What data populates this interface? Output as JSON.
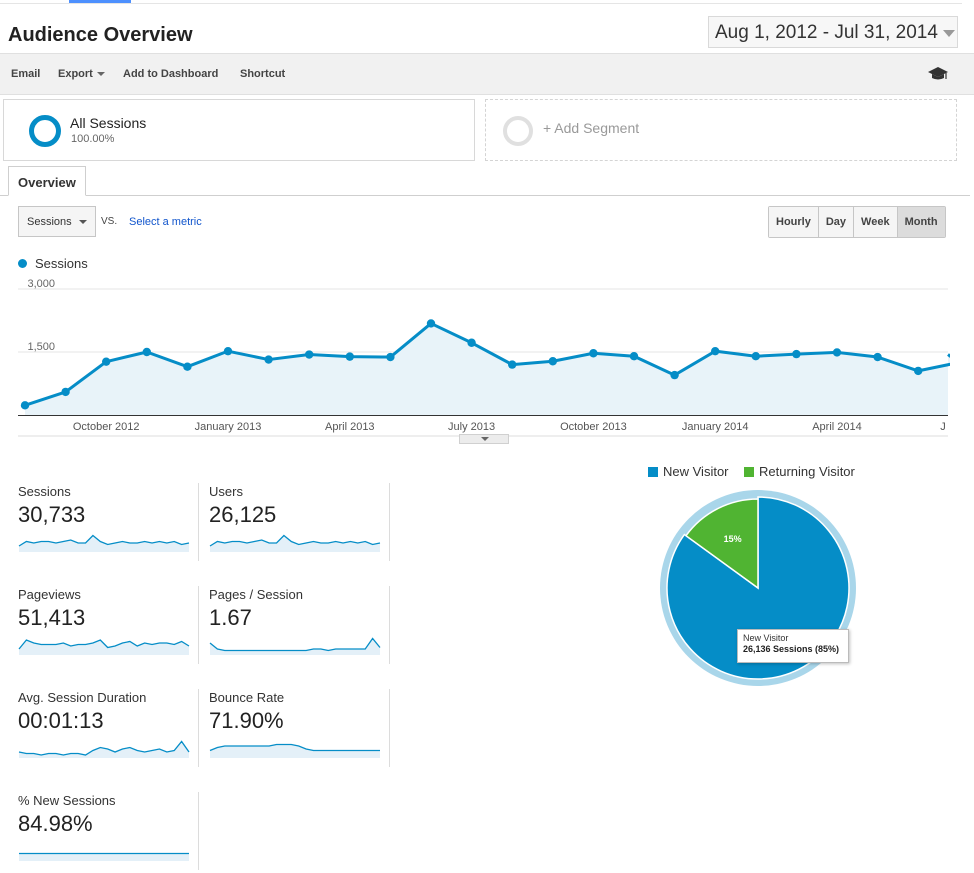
{
  "header": {
    "title": "Audience Overview",
    "date_range": "Aug 1, 2012 - Jul 31, 2014"
  },
  "toolbar": {
    "email": "Email",
    "export": "Export",
    "add_to_dashboard": "Add to Dashboard",
    "shortcut": "Shortcut",
    "help_icon": "graduation-cap-icon"
  },
  "segments": {
    "all": {
      "name": "All Sessions",
      "pct": "100.00%"
    },
    "add": {
      "label": "+ Add Segment"
    }
  },
  "tabs": [
    {
      "label": "Overview"
    }
  ],
  "controls": {
    "metric": "Sessions",
    "vs": "VS.",
    "select_metric": "Select a metric",
    "granularity": [
      "Hourly",
      "Day",
      "Week",
      "Month"
    ],
    "granularity_active": "Month"
  },
  "colors": {
    "accent": "#058dc7",
    "returning": "#50b432",
    "area": "#e8f3f9"
  },
  "chart_data": [
    {
      "type": "line",
      "series": [
        {
          "name": "Sessions",
          "values": [
            230,
            550,
            1270,
            1500,
            1150,
            1520,
            1320,
            1440,
            1390,
            1380,
            2180,
            1720,
            1200,
            1280,
            1470,
            1400,
            950,
            1520,
            1400,
            1450,
            1490,
            1380,
            1050,
            1250
          ]
        }
      ],
      "x": [
        "Aug 2012",
        "Sep 2012",
        "Oct 2012",
        "Nov 2012",
        "Dec 2012",
        "Jan 2013",
        "Feb 2013",
        "Mar 2013",
        "Apr 2013",
        "May 2013",
        "Jun 2013",
        "Jul 2013",
        "Aug 2013",
        "Sep 2013",
        "Oct 2013",
        "Nov 2013",
        "Dec 2013",
        "Jan 2014",
        "Feb 2014",
        "Mar 2014",
        "Apr 2014",
        "May 2014",
        "Jun 2014",
        "Jul 2014"
      ],
      "x_tick_labels": [
        "October 2012",
        "January 2013",
        "April 2013",
        "July 2013",
        "October 2013",
        "January 2014",
        "April 2014",
        "J"
      ],
      "x_tick_index": [
        2,
        5,
        8,
        11,
        14,
        17,
        20,
        23
      ],
      "y_ticks": [
        "3,000",
        "1,500"
      ],
      "ylim": [
        0,
        3000
      ],
      "grid": true
    },
    {
      "type": "pie",
      "categories": [
        "New Visitor",
        "Returning Visitor"
      ],
      "values": [
        85,
        15
      ],
      "slice_labels": [
        "",
        "15%"
      ]
    }
  ],
  "tooltip": {
    "title": "New Visitor",
    "value": "26,136 Sessions (85%)"
  },
  "metrics": [
    {
      "label": "Sessions",
      "value": "30,733",
      "spark": [
        4,
        7,
        6,
        7,
        7,
        6,
        7,
        8,
        6,
        6,
        11,
        7,
        5,
        6,
        7,
        6,
        6,
        7,
        6,
        7,
        6,
        7,
        5,
        6
      ]
    },
    {
      "label": "Users",
      "value": "26,125",
      "spark": [
        4,
        7,
        6,
        7,
        7,
        6,
        7,
        8,
        6,
        6,
        11,
        7,
        5,
        6,
        7,
        6,
        6,
        7,
        6,
        7,
        6,
        7,
        5,
        6
      ]
    },
    {
      "label": "Pageviews",
      "value": "51,413",
      "spark": [
        4,
        10,
        8,
        7,
        7,
        7,
        8,
        6,
        7,
        7,
        8,
        10,
        5,
        6,
        8,
        9,
        6,
        8,
        7,
        8,
        8,
        7,
        9,
        6
      ]
    },
    {
      "label": "Pages / Session",
      "value": "1.67",
      "spark": [
        8,
        4,
        3,
        3,
        3,
        3,
        3,
        3,
        3,
        3,
        3,
        3,
        3,
        3,
        4,
        4,
        3,
        4,
        4,
        4,
        4,
        4,
        11,
        5
      ]
    },
    {
      "label": "Avg. Session Duration",
      "value": "00:01:13",
      "spark": [
        4,
        3,
        3,
        2,
        3,
        3,
        2,
        3,
        3,
        2,
        5,
        7,
        6,
        4,
        6,
        7,
        5,
        4,
        5,
        6,
        4,
        5,
        11,
        4
      ]
    },
    {
      "label": "Bounce Rate",
      "value": "71.90%",
      "spark": [
        5,
        7,
        8,
        8,
        8,
        8,
        8,
        8,
        8,
        9,
        9,
        9,
        8,
        6,
        5,
        5,
        5,
        5,
        5,
        5,
        5,
        5,
        5,
        5
      ]
    },
    {
      "label": "% New Sessions",
      "value": "84.98%",
      "spark": [
        5,
        5,
        5,
        5,
        5,
        5,
        5,
        5,
        5,
        5,
        5,
        5,
        5,
        5,
        5,
        5,
        5,
        5,
        5,
        5,
        5,
        5,
        5,
        5
      ]
    }
  ]
}
